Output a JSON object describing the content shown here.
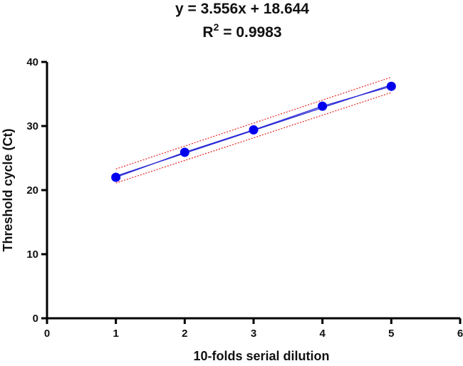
{
  "chart_data": {
    "type": "scatter",
    "title_line1": "y = 3.556x + 18.644",
    "title_line2_base": "R",
    "title_line2_sup": "2",
    "title_line2_rest": " = 0.9983",
    "xlabel": "10-folds serial dilution",
    "ylabel": "Threshold cycle (Ct)",
    "xlim": [
      0,
      6
    ],
    "ylim": [
      0,
      40
    ],
    "xticks": [
      0,
      1,
      2,
      3,
      4,
      5,
      6
    ],
    "yticks": [
      0,
      10,
      20,
      30,
      40
    ],
    "grid": false,
    "series": [
      {
        "x": [
          1,
          2,
          3,
          4,
          5
        ],
        "y": [
          22.0,
          25.9,
          29.4,
          33.1,
          36.2
        ]
      }
    ],
    "fit": {
      "slope": 3.556,
      "intercept": 18.644,
      "r_squared": 0.9983
    },
    "confidence_band": {
      "half_width_at_x1": 1.1,
      "half_width_at_x5": 1.2
    },
    "colors": {
      "points": "#0000ee",
      "fit_line": "#2b2bd6",
      "confidence": "#ee2222",
      "axes": "#000000"
    }
  }
}
